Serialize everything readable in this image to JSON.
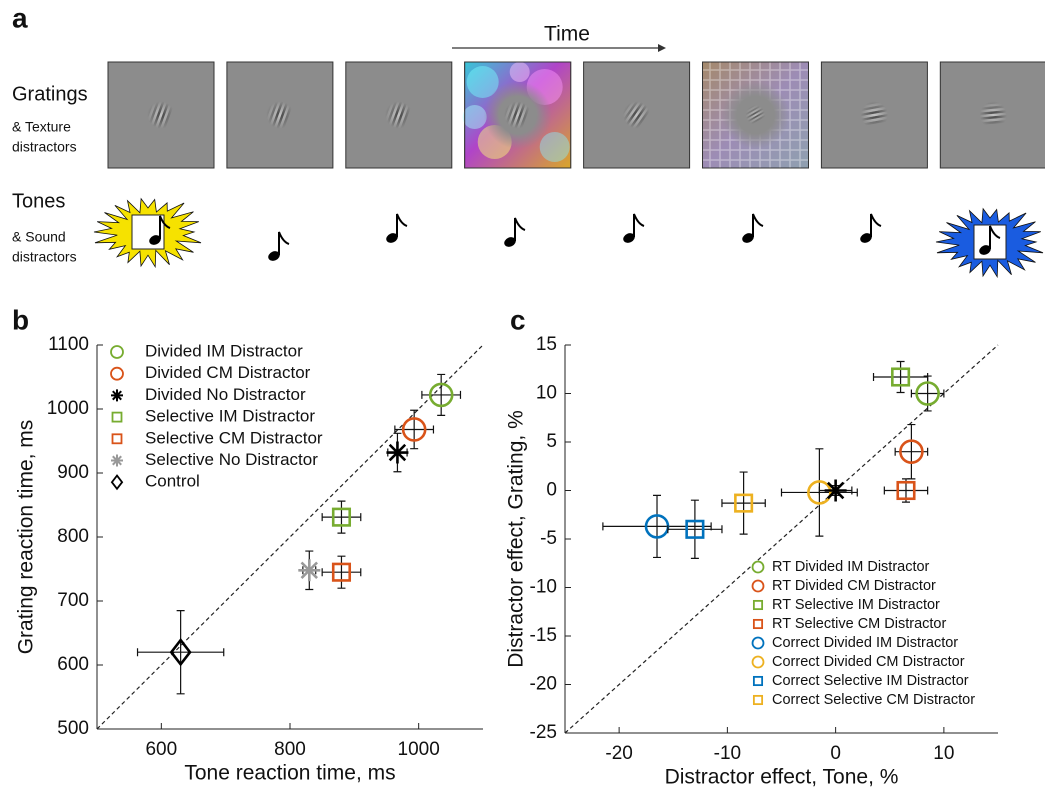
{
  "panel_a": {
    "label": "a",
    "time_label": "Time",
    "rows": [
      {
        "title": "Gratings",
        "subtitle": [
          "& Texture",
          "distractors"
        ]
      },
      {
        "title": "Tones",
        "subtitle": [
          "& Sound",
          "distractors"
        ]
      }
    ]
  },
  "chart_data": [
    {
      "type": "scatter",
      "panel_label": "b",
      "xlabel": "Tone reaction time, ms",
      "ylabel": "Grating reaction time, ms",
      "xlim": [
        500,
        1100
      ],
      "ylim": [
        500,
        1100
      ],
      "xticks": [
        600,
        800,
        1000
      ],
      "yticks": [
        500,
        600,
        700,
        800,
        900,
        1000,
        1100
      ],
      "diagonal": true,
      "legend": "upper left",
      "series": [
        {
          "name": "Divided IM Distractor",
          "color": "#77ac30",
          "marker": "circle",
          "x": 1035,
          "y": 1022,
          "xerr": 30,
          "yerr": 32
        },
        {
          "name": "Divided CM Distractor",
          "color": "#d95319",
          "marker": "circle",
          "x": 993,
          "y": 968,
          "xerr": 30,
          "yerr": 30
        },
        {
          "name": "Divided No Distractor",
          "color": "#000000",
          "marker": "star",
          "x": 967,
          "y": 932,
          "xerr": 15,
          "yerr": 30
        },
        {
          "name": "Selective IM Distractor",
          "color": "#77ac30",
          "marker": "square",
          "x": 880,
          "y": 831,
          "xerr": 30,
          "yerr": 25
        },
        {
          "name": "Selective CM Distractor",
          "color": "#d95319",
          "marker": "square",
          "x": 880,
          "y": 745,
          "xerr": 30,
          "yerr": 25
        },
        {
          "name": "Selective No Distractor",
          "color": "#999999",
          "marker": "star",
          "x": 830,
          "y": 748,
          "xerr": 10,
          "yerr": 30
        },
        {
          "name": "Control",
          "color": "#000000",
          "marker": "diamond",
          "x": 630,
          "y": 620,
          "xerr": 67,
          "yerr": 65
        }
      ]
    },
    {
      "type": "scatter",
      "panel_label": "c",
      "xlabel": "Distractor effect, Tone, %",
      "ylabel": "Distractor effect, Grating, %",
      "xlim": [
        -25,
        15
      ],
      "ylim": [
        -25,
        15
      ],
      "xticks": [
        -20,
        -10,
        0,
        10
      ],
      "yticks": [
        -25,
        -20,
        -15,
        -10,
        -5,
        0,
        5,
        10,
        15
      ],
      "diagonal": true,
      "legend": "lower right",
      "series": [
        {
          "name": "RT Divided IM Distractor",
          "color": "#77ac30",
          "marker": "circle",
          "x": 8.5,
          "y": 10,
          "xerr": 1.5,
          "yerr": 1.8
        },
        {
          "name": "RT Divided CM Distractor",
          "color": "#d95319",
          "marker": "circle",
          "x": 7,
          "y": 4,
          "xerr": 1.5,
          "yerr": 2.8
        },
        {
          "name": "RT Selective IM Distractor",
          "color": "#77ac30",
          "marker": "square",
          "x": 6,
          "y": 11.7,
          "xerr": 2.5,
          "yerr": 1.6
        },
        {
          "name": "RT Selective CM Distractor",
          "color": "#d95319",
          "marker": "square",
          "x": 6.5,
          "y": 0,
          "xerr": 2,
          "yerr": 1.2
        },
        {
          "name": "Correct Divided IM Distractor",
          "color": "#0072bd",
          "marker": "circle",
          "x": -16.5,
          "y": -3.7,
          "xerr": 5,
          "yerr": 3.2
        },
        {
          "name": "Correct Divided CM Distractor",
          "color": "#edb120",
          "marker": "circle",
          "x": -1.5,
          "y": -0.2,
          "xerr": 3.5,
          "yerr": 4.5
        },
        {
          "name": "Correct Selective IM Distractor",
          "color": "#0072bd",
          "marker": "square",
          "x": -13,
          "y": -4,
          "xerr": 2.5,
          "yerr": 3
        },
        {
          "name": "Correct Selective CM Distractor",
          "color": "#edb120",
          "marker": "square",
          "x": -8.5,
          "y": -1.3,
          "xerr": 2,
          "yerr": 3.2
        }
      ],
      "reference": {
        "color": "#000000",
        "marker": "star",
        "x": 0,
        "y": 0,
        "xerr": 1.5,
        "yerr": 0.5
      }
    }
  ]
}
